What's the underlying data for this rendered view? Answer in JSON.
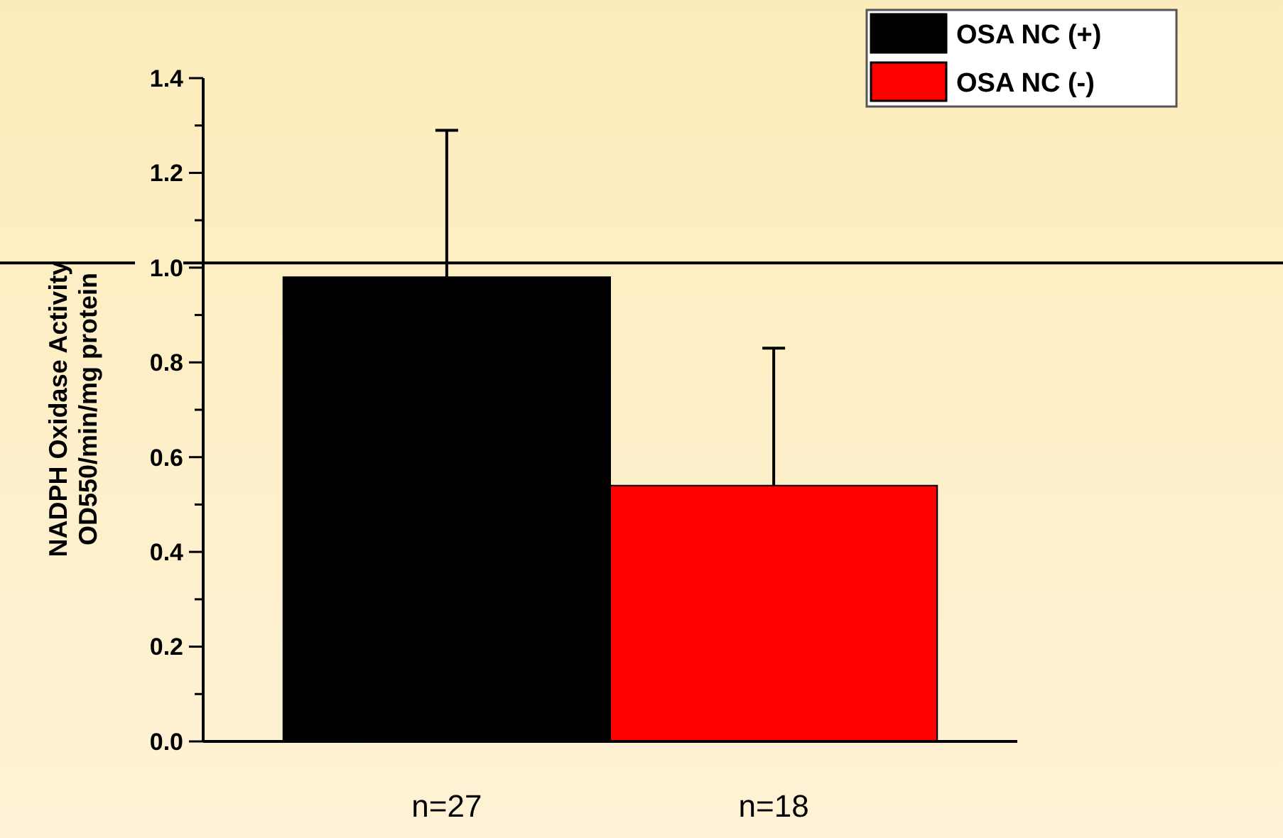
{
  "chart_data": {
    "type": "bar",
    "ylabel": "NADPH Oxidase Activity\nOD550/min/mg protein",
    "categories": [
      "n=27",
      "n=18"
    ],
    "series": [
      {
        "name": "OSA NC (+)",
        "color": "#000000",
        "values": [
          0.98,
          null
        ],
        "errors": [
          [
            0.98,
            1.29
          ],
          null
        ]
      },
      {
        "name": "OSA NC (-)",
        "color": "#ff0000",
        "values": [
          null,
          0.54
        ],
        "errors": [
          null,
          [
            0.54,
            0.83
          ]
        ]
      }
    ],
    "ylim": [
      0,
      1.4
    ],
    "yticks": [
      {
        "value": 0,
        "label": "0.0"
      },
      {
        "value": 0.1,
        "label": null
      },
      {
        "value": 0.2,
        "label": "0.2"
      },
      {
        "value": 0.3,
        "label": null
      },
      {
        "value": 0.4,
        "label": "0.4"
      },
      {
        "value": 0.5,
        "label": null
      },
      {
        "value": 0.6,
        "label": "0.6"
      },
      {
        "value": 0.7,
        "label": null
      },
      {
        "value": 0.8,
        "label": "0.8"
      },
      {
        "value": 0.9,
        "label": null
      },
      {
        "value": 1.0,
        "label": "1.0"
      },
      {
        "value": 1.1,
        "label": null
      },
      {
        "value": 1.2,
        "label": "1.2"
      },
      {
        "value": 1.3,
        "label": null
      },
      {
        "value": 1.4,
        "label": "1.4"
      }
    ],
    "ref_lines": [
      {
        "axis": "y",
        "value": 1.01,
        "color": "#000000"
      }
    ],
    "legend": "top right",
    "grid": false
  }
}
